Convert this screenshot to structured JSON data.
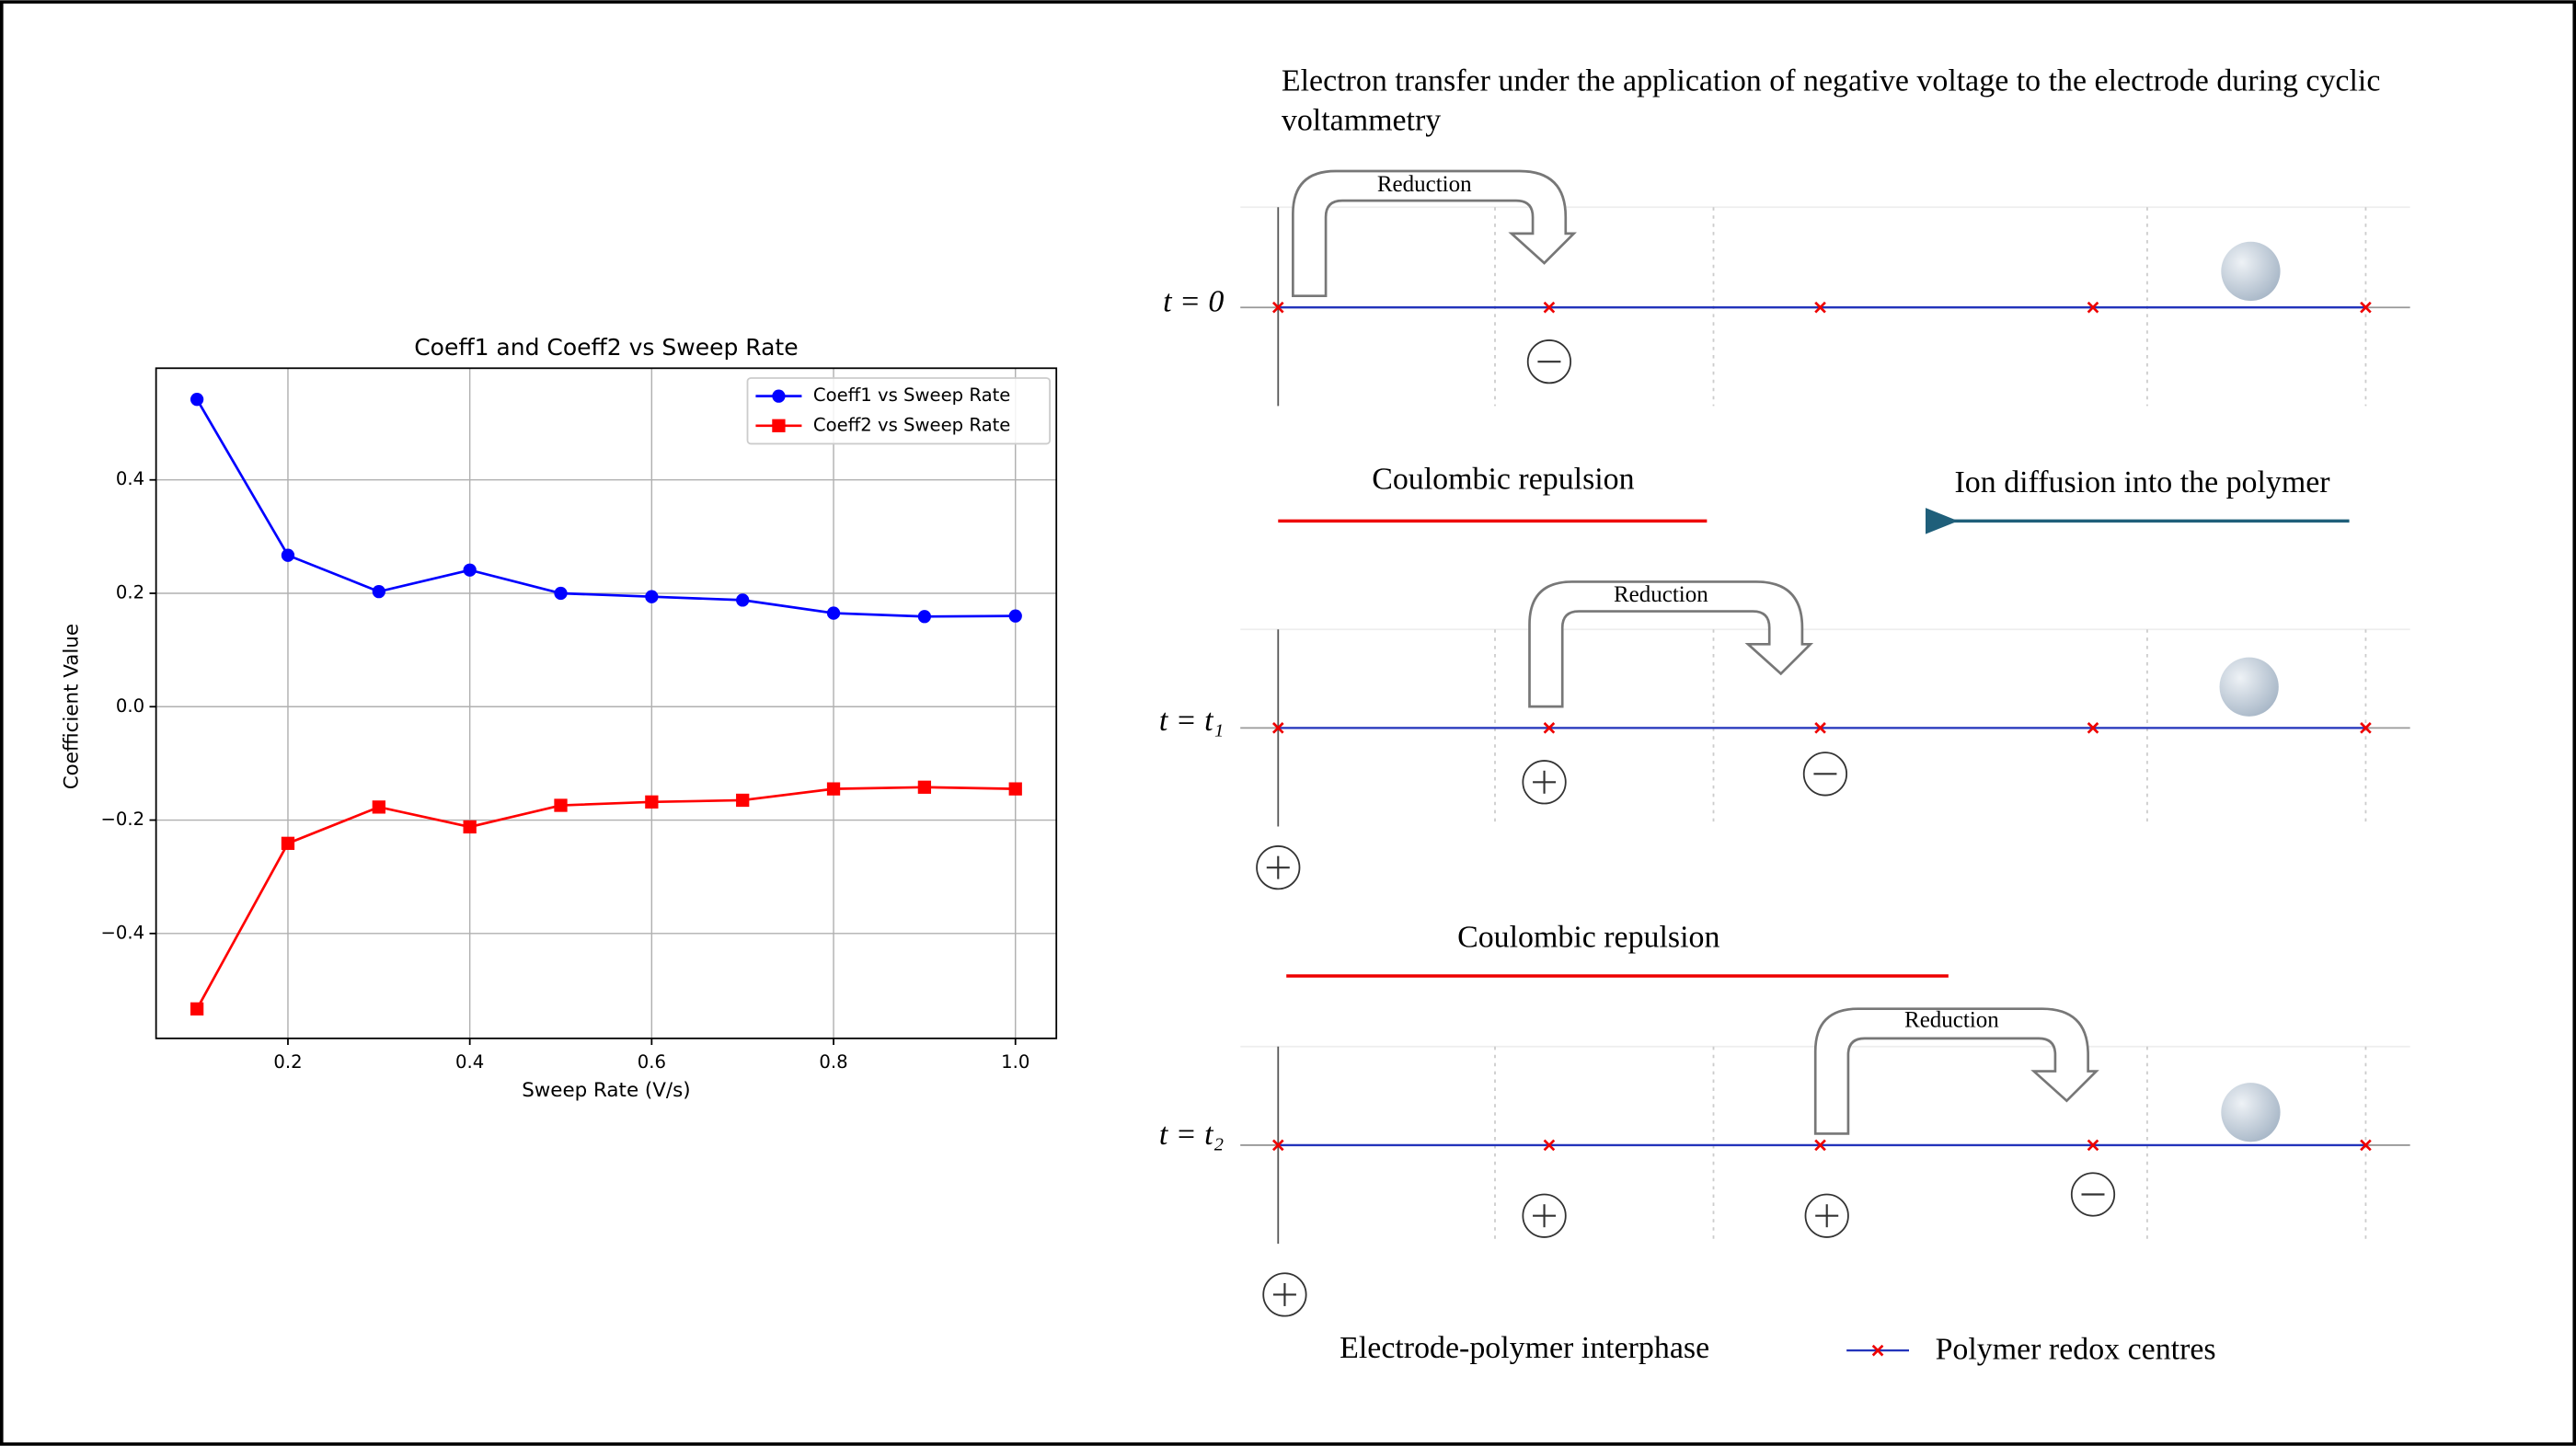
{
  "chart_data": {
    "type": "line",
    "title": "Coeff1 and Coeff2 vs Sweep Rate",
    "x_label": "Sweep Rate (V/s)",
    "y_label": "Coefficient Value",
    "x": [
      0.1,
      0.2,
      0.3,
      0.4,
      0.5,
      0.6,
      0.7,
      0.8,
      0.9,
      1.0
    ],
    "series": [
      {
        "name": "Coeff1 vs Sweep Rate",
        "color": "#0000ff",
        "marker": "circle",
        "values": [
          0.542,
          0.267,
          0.203,
          0.241,
          0.2,
          0.194,
          0.188,
          0.165,
          0.159,
          0.16
        ]
      },
      {
        "name": "Coeff2 vs Sweep Rate",
        "color": "#ff0000",
        "marker": "square",
        "values": [
          -0.533,
          -0.241,
          -0.177,
          -0.212,
          -0.174,
          -0.168,
          -0.165,
          -0.145,
          -0.142,
          -0.145
        ]
      }
    ],
    "xlim": [
      0.055,
      1.045
    ],
    "ylim": [
      -0.585,
      0.597
    ],
    "xticks": [
      0.2,
      0.4,
      0.6,
      0.8,
      {
        "value": 1,
        "label": "1.0"
      }
    ],
    "yticks": [
      {
        "value": -0.4,
        "label": "−0.4"
      },
      {
        "value": -0.2,
        "label": "−0.2"
      },
      {
        "value": 0,
        "label": "0.0"
      },
      0.2,
      0.4
    ],
    "grid": true,
    "legend": "upper right"
  },
  "diagram": {
    "title": "Electron transfer under the application of negative voltage to the electrode during cyclic voltammetry",
    "time_labels": [
      "t = 0",
      "t = t₁",
      "t = t₂"
    ],
    "arrow_labels": [
      "Reduction",
      "Reduction",
      "Reduction"
    ],
    "repulsion_labels": [
      "Coulombic repulsion",
      "Coulombic repulsion"
    ],
    "diffusion_label": "Ion diffusion into the polymer",
    "electrode_label": "Electrode-polymer interphase",
    "legend_label": "Polymer redox centres"
  }
}
